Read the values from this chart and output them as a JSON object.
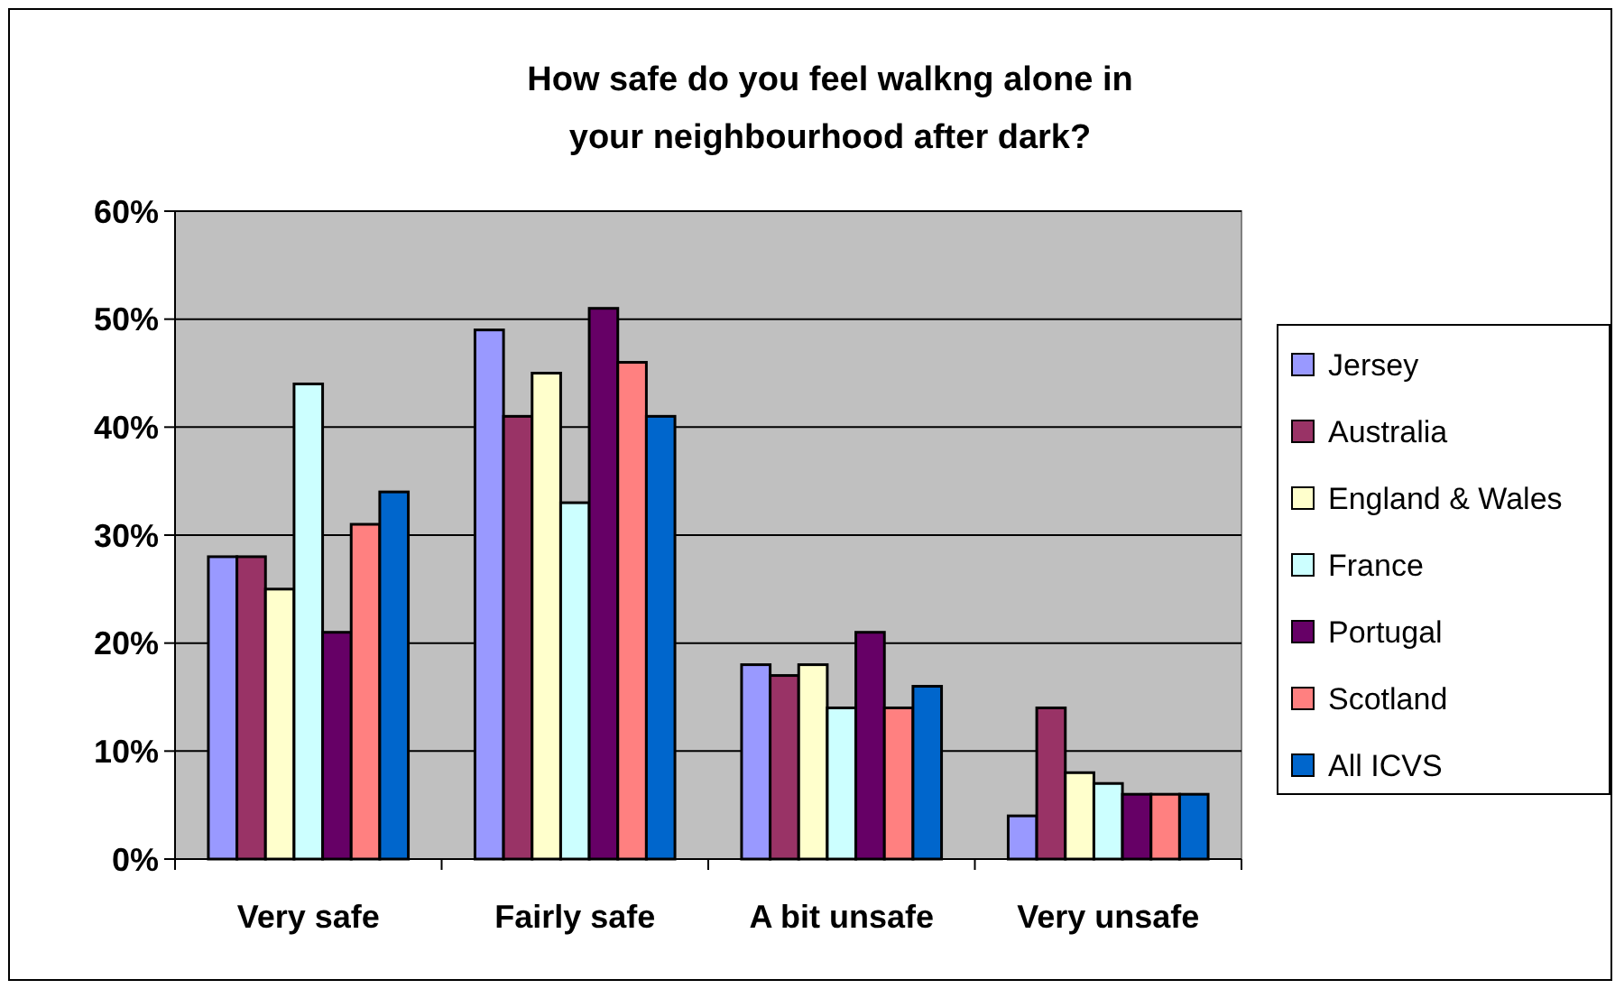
{
  "chart_data": {
    "type": "bar",
    "title": "How safe do you feel walkng alone in your neighbourhood after dark?",
    "categories": [
      "Very safe",
      "Fairly safe",
      "A bit unsafe",
      "Very unsafe"
    ],
    "series": [
      {
        "name": "Jersey",
        "color": "#9999ff",
        "values": [
          28,
          49,
          18,
          4
        ]
      },
      {
        "name": "Australia",
        "color": "#993366",
        "values": [
          28,
          41,
          17,
          14
        ]
      },
      {
        "name": "England & Wales",
        "color": "#ffffcc",
        "values": [
          25,
          45,
          18,
          8
        ]
      },
      {
        "name": "France",
        "color": "#ccffff",
        "values": [
          44,
          33,
          14,
          7
        ]
      },
      {
        "name": "Portugal",
        "color": "#660066",
        "values": [
          21,
          51,
          21,
          6
        ]
      },
      {
        "name": "Scotland",
        "color": "#ff8080",
        "values": [
          31,
          46,
          14,
          6
        ]
      },
      {
        "name": "All ICVS",
        "color": "#0066cc",
        "values": [
          34,
          41,
          16,
          6
        ]
      }
    ],
    "ylim": [
      0,
      60
    ],
    "yticks": [
      {
        "value": 0,
        "label": "0%"
      },
      {
        "value": 10,
        "label": "10%"
      },
      {
        "value": 20,
        "label": "20%"
      },
      {
        "value": 30,
        "label": "30%"
      },
      {
        "value": 40,
        "label": "40%"
      },
      {
        "value": 50,
        "label": "50%"
      },
      {
        "value": 60,
        "label": "60%"
      }
    ],
    "grid": "y",
    "legend": "right"
  }
}
